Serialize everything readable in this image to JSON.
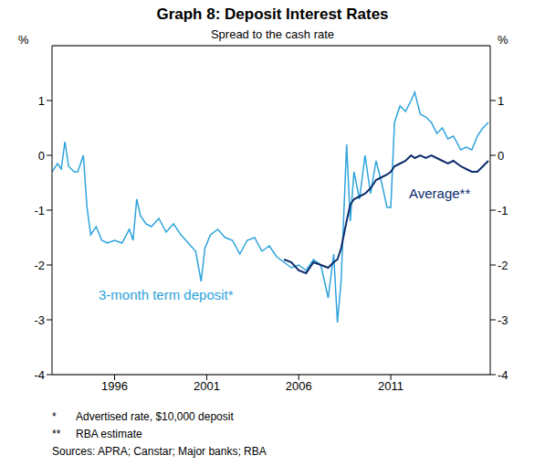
{
  "chart_data": {
    "type": "line",
    "title": "Graph 8: Deposit Interest Rates",
    "subtitle": "Spread to the cash rate",
    "y_unit": "%",
    "x": [
      1992.6,
      1992.9,
      1993.1,
      1993.3,
      1993.5,
      1993.8,
      1994.0,
      1994.3,
      1994.5,
      1994.7,
      1995.0,
      1995.3,
      1995.6,
      1996.0,
      1996.4,
      1996.8,
      1997.0,
      1997.2,
      1997.4,
      1997.7,
      1998.0,
      1998.4,
      1998.8,
      1999.2,
      1999.6,
      2000.0,
      2000.4,
      2000.7,
      2000.9,
      2001.2,
      2001.6,
      2002.0,
      2002.4,
      2002.8,
      2003.2,
      2003.6,
      2004.0,
      2004.4,
      2004.8,
      2005.2,
      2005.6,
      2006.0,
      2006.4,
      2006.8,
      2007.2,
      2007.6,
      2007.9,
      2008.1,
      2008.3,
      2008.6,
      2008.8,
      2009.0,
      2009.3,
      2009.6,
      2009.9,
      2010.2,
      2010.5,
      2010.8,
      2011.0,
      2011.2,
      2011.5,
      2011.8,
      2012.1,
      2012.3,
      2012.6,
      2012.9,
      2013.2,
      2013.5,
      2013.8,
      2014.1,
      2014.4,
      2014.8,
      2015.1,
      2015.4,
      2015.7,
      2016.0,
      2016.3
    ],
    "series": [
      {
        "name": "3-month term deposit*",
        "color": "#2ea3dc",
        "values": [
          -0.3,
          -0.15,
          -0.25,
          0.25,
          -0.2,
          -0.3,
          -0.3,
          0.0,
          -0.95,
          -1.45,
          -1.3,
          -1.55,
          -1.6,
          -1.55,
          -1.6,
          -1.35,
          -1.55,
          -0.8,
          -1.1,
          -1.25,
          -1.3,
          -1.15,
          -1.4,
          -1.25,
          -1.45,
          -1.6,
          -1.75,
          -2.3,
          -1.7,
          -1.45,
          -1.35,
          -1.5,
          -1.55,
          -1.8,
          -1.55,
          -1.5,
          -1.75,
          -1.65,
          -1.85,
          -1.95,
          -2.05,
          -2.0,
          -2.1,
          -1.9,
          -2.0,
          -2.6,
          -1.8,
          -3.05,
          -2.3,
          0.2,
          -1.2,
          -0.3,
          -0.8,
          0.0,
          -0.7,
          -0.1,
          -0.5,
          -0.95,
          -0.95,
          0.6,
          0.9,
          0.8,
          1.0,
          1.15,
          0.75,
          0.7,
          0.6,
          0.4,
          0.5,
          0.3,
          0.35,
          0.1,
          0.15,
          0.1,
          0.35,
          0.5,
          0.6
        ]
      },
      {
        "name": "Average**",
        "color": "#0d2c6c",
        "values": [
          null,
          null,
          null,
          null,
          null,
          null,
          null,
          null,
          null,
          null,
          null,
          null,
          null,
          null,
          null,
          null,
          null,
          null,
          null,
          null,
          null,
          null,
          null,
          null,
          null,
          null,
          null,
          null,
          null,
          null,
          null,
          null,
          null,
          null,
          null,
          null,
          null,
          null,
          null,
          -1.9,
          -1.95,
          -2.1,
          -2.15,
          -1.95,
          -2.0,
          -2.05,
          -1.95,
          -1.9,
          -1.7,
          -1.2,
          -0.9,
          -0.8,
          -0.75,
          -0.7,
          -0.6,
          -0.45,
          -0.4,
          -0.35,
          -0.3,
          -0.2,
          -0.15,
          -0.1,
          0.0,
          -0.05,
          0.0,
          -0.05,
          0.0,
          -0.05,
          -0.1,
          -0.15,
          -0.1,
          -0.2,
          -0.25,
          -0.3,
          -0.3,
          -0.2,
          -0.1
        ]
      }
    ],
    "xlim": [
      1992.6,
      2016.4
    ],
    "xticks": [
      1996,
      2001,
      2006,
      2011
    ],
    "ylim": [
      -4,
      2
    ],
    "yticks": [
      -4,
      -3,
      -2,
      -1,
      0,
      1
    ],
    "grid": true,
    "notes": [
      {
        "marker": "*",
        "text": "Advertised rate, $10,000 deposit"
      },
      {
        "marker": "**",
        "text": "RBA estimate"
      }
    ],
    "source": "Sources:  APRA; Canstar; Major banks; RBA"
  }
}
